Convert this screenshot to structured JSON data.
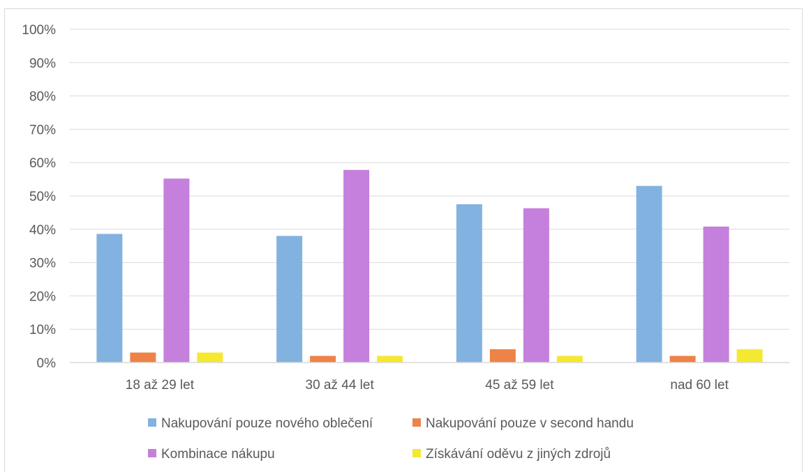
{
  "chart_data": {
    "type": "bar",
    "title": "",
    "xlabel": "",
    "ylabel": "",
    "ylim": [
      0,
      100
    ],
    "yticks": [
      "0%",
      "10%",
      "20%",
      "30%",
      "40%",
      "50%",
      "60%",
      "70%",
      "80%",
      "90%",
      "100%"
    ],
    "grid": true,
    "legend_position": "bottom",
    "categories": [
      "18 až 29 let",
      "30 až 44 let",
      "45 až 59 let",
      "nad 60 let"
    ],
    "series": [
      {
        "name": "Nakupování pouze nového oblečení",
        "color": "#82b3e0",
        "values": [
          38.6,
          38.0,
          47.5,
          53.0
        ]
      },
      {
        "name": "Nakupování pouze v second handu",
        "color": "#ee8348",
        "values": [
          3.0,
          2.0,
          4.0,
          2.0
        ]
      },
      {
        "name": "Kombinace nákupu",
        "color": "#c480dc",
        "values": [
          55.2,
          57.8,
          46.3,
          40.8
        ]
      },
      {
        "name": "Získávání oděvu z jiných zdrojů",
        "color": "#f5e830",
        "values": [
          3.0,
          2.0,
          2.0,
          4.0
        ]
      }
    ]
  }
}
